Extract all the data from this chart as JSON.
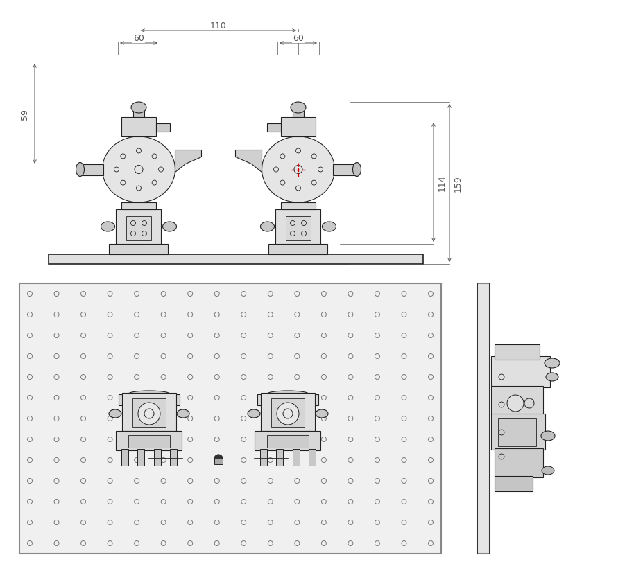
{
  "bg_color": "#ffffff",
  "line_color": "#4a4a4a",
  "dim_color": "#555555",
  "light_gray": "#aaaaaa",
  "medium_gray": "#888888",
  "dark_line": "#222222",
  "red_cross": "#cc0000",
  "dim_60_left": "60",
  "dim_60_right": "60",
  "dim_110": "110",
  "dim_59": "59",
  "dim_114": "114",
  "dim_159": "159"
}
